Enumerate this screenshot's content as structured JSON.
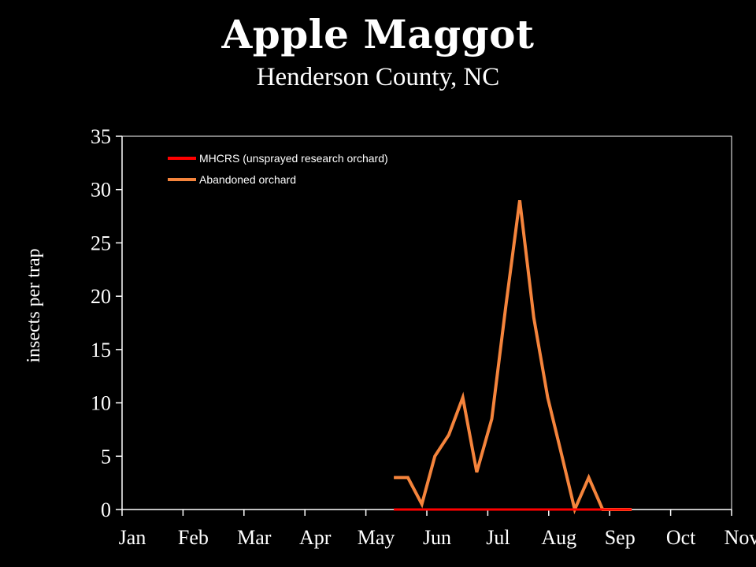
{
  "chart_data": {
    "type": "line",
    "title": "Apple Maggot",
    "subtitle": "Henderson County, NC",
    "xlabel": "",
    "ylabel": "insects per trap",
    "ylim": [
      0,
      35
    ],
    "yticks": [
      0,
      5,
      10,
      15,
      20,
      25,
      30,
      35
    ],
    "months": [
      "Jan",
      "Feb",
      "Mar",
      "Apr",
      "May",
      "Jun",
      "Jul",
      "Aug",
      "Sep",
      "Oct",
      "Nov"
    ],
    "grid": false,
    "legend": "top-left",
    "series": [
      {
        "name": "MHCRS (unsprayed research orchard)",
        "color": "#ff0000",
        "x": [
          "May 15",
          "May 29",
          "Jun 12",
          "Jun 26",
          "Jul 10",
          "Jul 24",
          "Aug 7",
          "Aug 21",
          "Sep 4",
          "Sep 12"
        ],
        "values": [
          0,
          0,
          0,
          0,
          0,
          0,
          0,
          0,
          0,
          0
        ]
      },
      {
        "name": "Abandoned orchard",
        "color": "#f5843c",
        "x": [
          "May 15",
          "May 22",
          "May 29",
          "Jun 5",
          "Jun 12",
          "Jun 19",
          "Jun 26",
          "Jul 3",
          "Jul 10",
          "Jul 17",
          "Jul 24",
          "Jul 31",
          "Aug 7",
          "Aug 14",
          "Aug 21",
          "Aug 28",
          "Sep 4",
          "Sep 12"
        ],
        "values": [
          3,
          3,
          0.5,
          5,
          7,
          10.5,
          3.5,
          8.5,
          19,
          29,
          18,
          10.5,
          5.5,
          0,
          3,
          0,
          0,
          0
        ]
      }
    ]
  }
}
